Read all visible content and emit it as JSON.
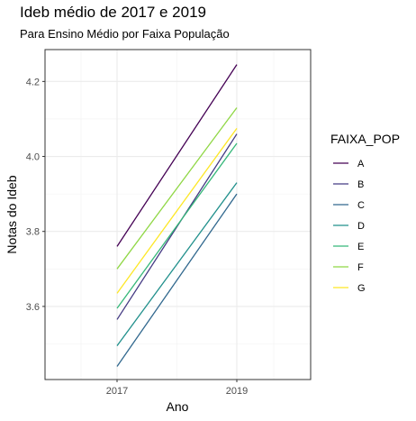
{
  "chart_data": {
    "type": "line",
    "title": "Ideb médio de 2017 e 2019",
    "subtitle": "Para Ensino Médio por Faixa População",
    "xlabel": "Ano",
    "ylabel": "Notas do Ideb",
    "x": [
      "2017",
      "2019"
    ],
    "x_tick_labels": [
      "2017",
      "2019"
    ],
    "ylim": [
      3.405,
      4.285
    ],
    "y_ticks": [
      3.6,
      3.8,
      4.0,
      4.2
    ],
    "y_tick_labels": [
      "3.6",
      "3.8",
      "4.0",
      "4.2"
    ],
    "grid": true,
    "legend_title": "FAIXA_POP",
    "legend_position": "right",
    "series": [
      {
        "name": "A",
        "color": "#440154",
        "values": [
          3.76,
          4.245
        ]
      },
      {
        "name": "B",
        "color": "#443A83",
        "values": [
          3.565,
          4.06
        ]
      },
      {
        "name": "C",
        "color": "#31688E",
        "values": [
          3.44,
          3.9
        ]
      },
      {
        "name": "D",
        "color": "#21908C",
        "values": [
          3.495,
          3.93
        ]
      },
      {
        "name": "E",
        "color": "#35B779",
        "values": [
          3.595,
          4.035
        ]
      },
      {
        "name": "F",
        "color": "#8FD744",
        "values": [
          3.7,
          4.13
        ]
      },
      {
        "name": "G",
        "color": "#FDE725",
        "values": [
          3.635,
          4.075
        ]
      }
    ]
  }
}
